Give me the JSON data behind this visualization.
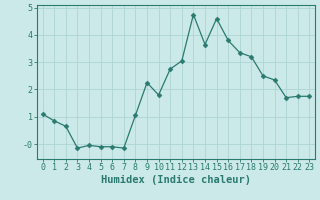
{
  "xlabel": "Humidex (Indice chaleur)",
  "ylabel": "",
  "x_values": [
    0,
    1,
    2,
    3,
    4,
    5,
    6,
    7,
    8,
    9,
    10,
    11,
    12,
    13,
    14,
    15,
    16,
    17,
    18,
    19,
    20,
    21,
    22,
    23
  ],
  "y_values": [
    1.1,
    0.85,
    0.65,
    -0.15,
    -0.05,
    -0.1,
    -0.1,
    -0.15,
    1.05,
    2.25,
    1.8,
    2.75,
    3.05,
    4.75,
    3.65,
    4.6,
    3.8,
    3.35,
    3.2,
    2.5,
    2.35,
    1.7,
    1.75,
    1.75
  ],
  "line_color": "#2a7a6f",
  "marker": "D",
  "marker_size": 2.5,
  "background_color": "#cce9e9",
  "grid_color": "#aed4d4",
  "ylim": [
    -0.55,
    5.1
  ],
  "xlim": [
    -0.5,
    23.5
  ],
  "yticks": [
    0,
    1,
    2,
    3,
    4,
    5
  ],
  "ytick_labels": [
    "-0",
    "1",
    "2",
    "3",
    "4",
    "5"
  ],
  "xticks": [
    0,
    1,
    2,
    3,
    4,
    5,
    6,
    7,
    8,
    9,
    10,
    11,
    12,
    13,
    14,
    15,
    16,
    17,
    18,
    19,
    20,
    21,
    22,
    23
  ],
  "tick_color": "#2a7a6f",
  "axis_color": "#2a7a6f",
  "xlabel_fontsize": 7.5,
  "tick_fontsize": 6.0
}
